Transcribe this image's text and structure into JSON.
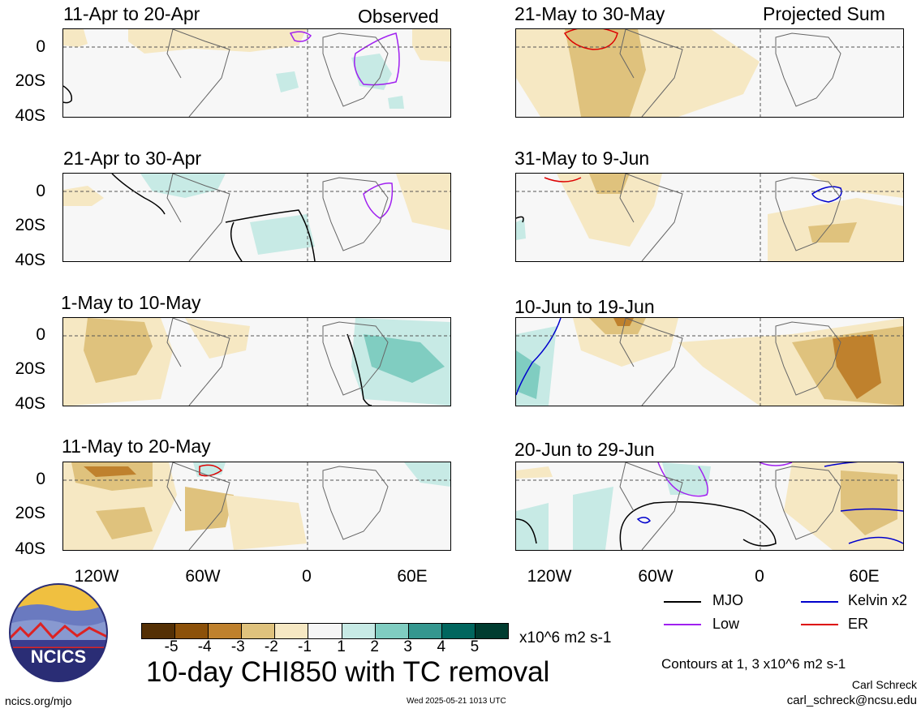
{
  "headers": {
    "observed": "Observed",
    "projected": "Projected Sum"
  },
  "panels_left": [
    {
      "label": "11-Apr to 20-Apr"
    },
    {
      "label": "21-Apr to 30-Apr"
    },
    {
      "label": "1-May to 10-May"
    },
    {
      "label": "11-May to 20-May"
    }
  ],
  "panels_right": [
    {
      "label": "21-May to 30-May"
    },
    {
      "label": "31-May to 9-Jun"
    },
    {
      "label": "10-Jun to 19-Jun"
    },
    {
      "label": "20-Jun to 29-Jun"
    }
  ],
  "y_ticks": [
    "0",
    "20S",
    "40S"
  ],
  "x_ticks": [
    "120W",
    "60W",
    "0",
    "60E"
  ],
  "colorbar": {
    "labels": [
      "-5",
      "-4",
      "-3",
      "-2",
      "-1",
      "1",
      "2",
      "3",
      "4",
      "5"
    ],
    "colors": [
      "#543005",
      "#8c510a",
      "#bf812d",
      "#dfc27d",
      "#f6e8c3",
      "#f5f5f5",
      "#c7eae5",
      "#80cdc1",
      "#35978f",
      "#01665e",
      "#003c30"
    ],
    "units": "x10^6 m2 s-1"
  },
  "main_title": "10-day CHI850 with TC removal",
  "legend": [
    {
      "label": "MJO",
      "color": "#000000"
    },
    {
      "label": "Kelvin x2",
      "color": "#0000cc"
    },
    {
      "label": "Low",
      "color": "#a020f0"
    },
    {
      "label": "ER",
      "color": "#dd0000"
    }
  ],
  "contour_note": "Contours at 1, 3 x10^6 m2 s-1",
  "author": "Carl Schreck",
  "email": "carl_schreck@ncsu.edu",
  "website": "ncics.org/mjo",
  "timestamp": "Wed 2025-05-21 1013 UTC",
  "logo_text": "NCICS"
}
